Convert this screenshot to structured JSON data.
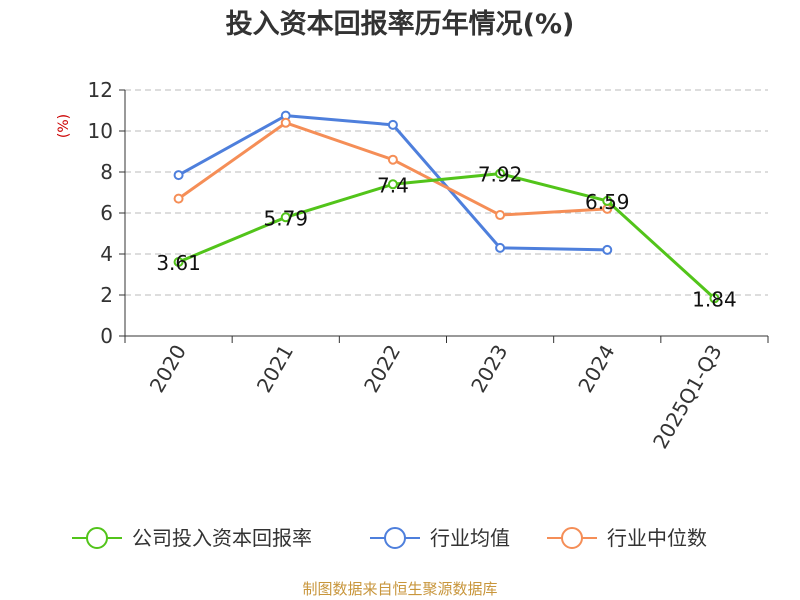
{
  "chart_data": {
    "type": "line",
    "title": "投入资本回报率历年情况(%)",
    "ylabel": "(%)",
    "xlabel": "",
    "ylim": [
      0,
      12
    ],
    "yticks": [
      0,
      2,
      4,
      6,
      8,
      10,
      12
    ],
    "grid": true,
    "legend_position": "bottom",
    "categories": [
      "2020",
      "2021",
      "2022",
      "2023",
      "2024",
      "2025Q1-Q3"
    ],
    "series": [
      {
        "name": "公司投入资本回报率",
        "color": "#52c41a",
        "values": [
          3.61,
          5.79,
          7.4,
          7.92,
          6.59,
          1.84
        ],
        "show_labels": true
      },
      {
        "name": "行业均值",
        "color": "#4e7fdc",
        "values": [
          7.85,
          10.75,
          10.3,
          4.3,
          4.2,
          null
        ],
        "show_labels": false
      },
      {
        "name": "行业中位数",
        "color": "#f58e57",
        "values": [
          6.7,
          10.4,
          8.6,
          5.9,
          6.2,
          null
        ],
        "show_labels": false
      }
    ],
    "label_text": [
      "3.61",
      "5.79",
      "7.4",
      "7.92",
      "6.59",
      "1.84"
    ]
  },
  "footer": {
    "source": "制图数据来自恒生聚源数据库",
    "source_color": "#c8963c"
  },
  "styles": {
    "ylabel_color": "#cc0000",
    "grid_color": "#bbbbbb",
    "axis_color": "#333333"
  }
}
